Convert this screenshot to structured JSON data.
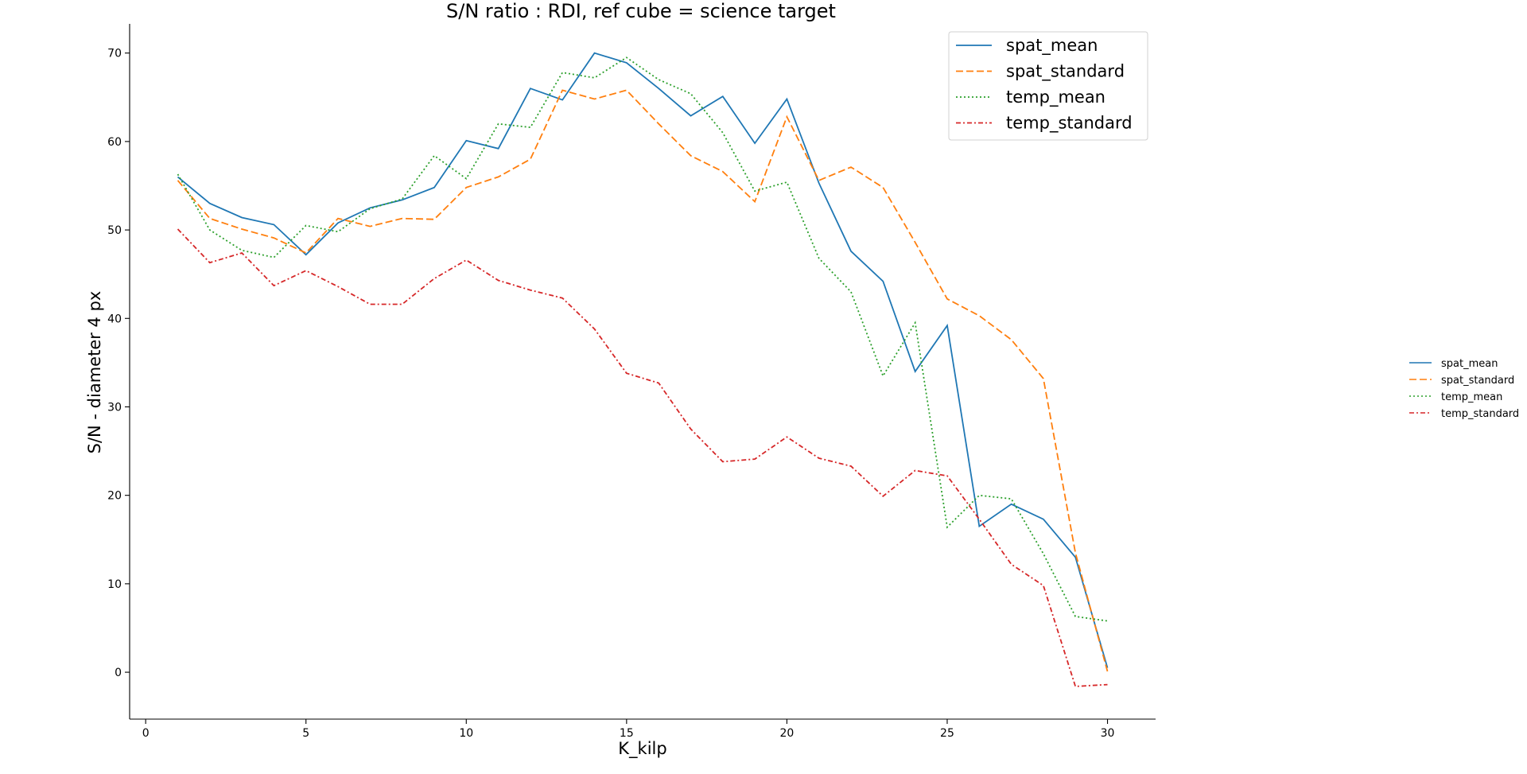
{
  "chart_data": {
    "type": "line",
    "title": "S/N ratio : RDI, ref cube = science target",
    "xlabel": "K_kilp",
    "ylabel": "S/N - diameter 4 px",
    "xlim": [
      -0.5,
      31.5
    ],
    "ylim": [
      -5.3,
      73.3
    ],
    "xticks": [
      0,
      5,
      10,
      15,
      20,
      25,
      30
    ],
    "yticks": [
      0,
      10,
      20,
      30,
      40,
      50,
      60,
      70
    ],
    "grid": false,
    "legend_placement": "top-right",
    "x": [
      1,
      2,
      3,
      4,
      5,
      6,
      7,
      8,
      9,
      10,
      11,
      12,
      13,
      14,
      15,
      16,
      17,
      18,
      19,
      20,
      21,
      22,
      23,
      24,
      25,
      26,
      27,
      28,
      29,
      30
    ],
    "series": [
      {
        "name": "spat_mean",
        "color": "#1f77b4",
        "linestyle": "solid",
        "values": [
          56.0,
          53.0,
          51.4,
          50.6,
          47.2,
          50.8,
          52.5,
          53.4,
          54.8,
          60.1,
          59.2,
          66.0,
          64.7,
          70.0,
          68.9,
          66.0,
          62.9,
          65.1,
          59.8,
          64.8,
          55.3,
          47.6,
          44.2,
          34.0,
          39.2,
          16.5,
          19.0,
          17.3,
          13.0,
          0.5
        ]
      },
      {
        "name": "spat_standard",
        "color": "#ff7f0e",
        "linestyle": "dashed",
        "values": [
          55.6,
          51.3,
          50.1,
          49.1,
          47.4,
          51.3,
          50.4,
          51.3,
          51.2,
          54.8,
          56.0,
          58.0,
          65.8,
          64.8,
          65.8,
          62.0,
          58.4,
          56.6,
          53.2,
          62.8,
          55.6,
          57.1,
          54.8,
          48.6,
          42.2,
          40.3,
          37.6,
          33.2,
          13.5,
          0.1
        ]
      },
      {
        "name": "temp_mean",
        "color": "#2ca02c",
        "linestyle": "dotted",
        "values": [
          56.3,
          50.0,
          47.7,
          46.9,
          50.5,
          49.8,
          52.4,
          53.5,
          58.4,
          55.8,
          62.0,
          61.6,
          67.8,
          67.2,
          69.5,
          67.0,
          65.4,
          61.0,
          54.4,
          55.4,
          46.8,
          43.0,
          33.5,
          39.5,
          16.4,
          20.0,
          19.6,
          13.4,
          6.3,
          5.8
        ]
      },
      {
        "name": "temp_standard",
        "color": "#d62728",
        "linestyle": "dashdot",
        "values": [
          50.1,
          46.3,
          47.4,
          43.7,
          45.4,
          43.6,
          41.6,
          41.6,
          44.5,
          46.6,
          44.3,
          43.2,
          42.3,
          38.8,
          33.8,
          32.7,
          27.5,
          23.8,
          24.1,
          26.6,
          24.2,
          23.3,
          19.9,
          22.8,
          22.2,
          17.3,
          12.2,
          9.8,
          -1.6,
          -1.4
        ]
      }
    ]
  }
}
